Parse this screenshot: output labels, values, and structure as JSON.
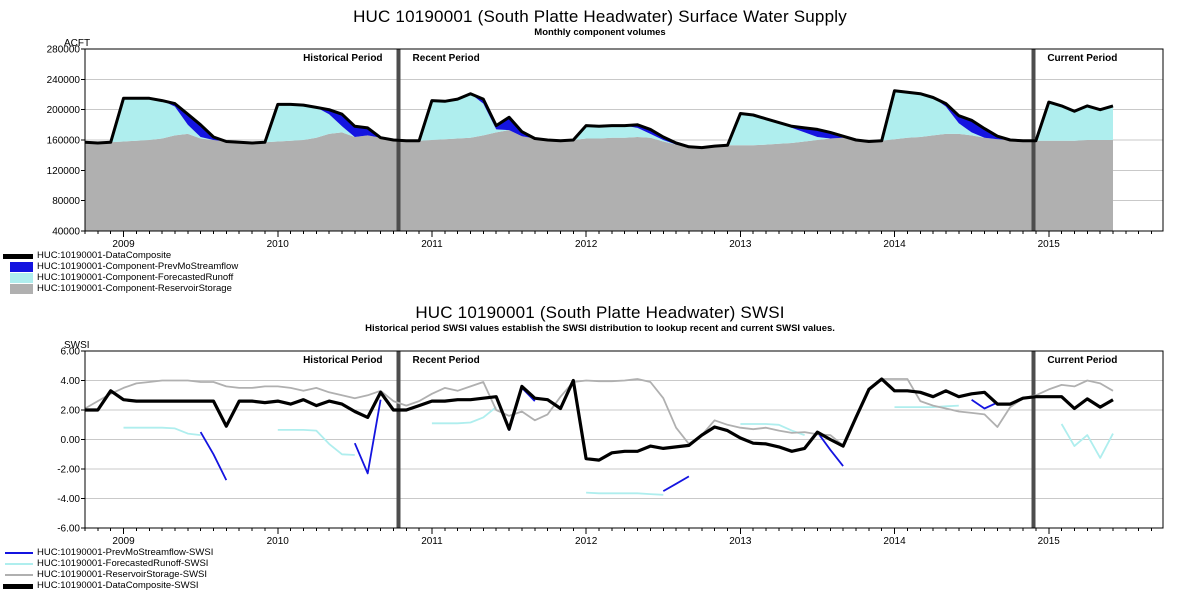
{
  "page": {
    "background": "#FFFFFF"
  },
  "colors": {
    "composite": "#000000",
    "prev_mo_streamflow": "#1414E0",
    "forecasted_runoff": "#AFEEEE",
    "reservoir_storage": "#B0B0B0",
    "gridline": "#C9C9C9",
    "divider": "#4D4D4D"
  },
  "top_chart": {
    "title": "HUC 10190001 (South Platte Headwater) Surface Water Supply",
    "subtitle": "Monthly component volumes",
    "y_axis_label": "ACFT",
    "period_labels": {
      "historical": "Historical Period",
      "recent": "Recent Period",
      "current": "Current Period"
    },
    "legend": [
      {
        "label": "HUC:10190001-DataComposite",
        "swatch": "thickline",
        "color": "#000000"
      },
      {
        "label": "HUC:10190001-Component-PrevMoStreamflow",
        "swatch": "fill",
        "color": "#1414E0"
      },
      {
        "label": "HUC:10190001-Component-ForecastedRunoff",
        "swatch": "fill",
        "color": "#AFEEEE"
      },
      {
        "label": "HUC:10190001-Component-ReservoirStorage",
        "swatch": "fill",
        "color": "#B0B0B0"
      }
    ],
    "chart_data": {
      "type": "area",
      "stacked": true,
      "x_start": "2008-10",
      "x_freq": "monthly",
      "x_tick_labels": [
        "2009",
        "2010",
        "2011",
        "2012",
        "2013",
        "2014",
        "2015"
      ],
      "ylim": [
        40000,
        280000
      ],
      "y_ticks": [
        280000,
        240000,
        200000,
        160000,
        120000,
        80000,
        40000
      ],
      "unit": "ACFT",
      "value_scale": 1000,
      "period_dividers": [
        24.4,
        73.8
      ],
      "series": [
        {
          "name": "ReservoirStorage",
          "color": "#B0B0B0",
          "values": [
            157,
            156,
            157,
            158,
            159,
            160,
            162,
            166,
            168,
            162,
            160,
            158,
            157,
            156,
            157,
            158,
            159,
            160,
            163,
            168,
            170,
            164,
            166,
            163,
            160,
            159,
            159,
            160,
            161,
            162,
            163,
            166,
            170,
            173,
            165,
            162,
            160,
            159,
            160,
            162,
            162,
            163,
            163,
            164,
            163,
            158,
            154,
            151,
            150,
            152,
            153,
            153,
            153,
            154,
            155,
            156,
            158,
            160,
            162,
            163,
            160,
            158,
            159,
            161,
            163,
            164,
            166,
            168,
            168,
            166,
            163,
            161,
            160,
            159,
            159,
            159,
            159,
            159,
            160,
            160,
            160
          ]
        },
        {
          "name": "ForecastedRunoff",
          "color": "#AFEEEE",
          "values": [
            0,
            0,
            0,
            57,
            56,
            55,
            50,
            38,
            12,
            2,
            0,
            0,
            0,
            0,
            0,
            49,
            48,
            46,
            40,
            26,
            8,
            0,
            0,
            0,
            0,
            0,
            0,
            52,
            50,
            52,
            58,
            42,
            4,
            0,
            0,
            0,
            0,
            0,
            0,
            17,
            16,
            16,
            16,
            12,
            5,
            2,
            0,
            0,
            0,
            0,
            0,
            42,
            40,
            34,
            28,
            20,
            12,
            4,
            0,
            0,
            0,
            0,
            0,
            64,
            60,
            57,
            50,
            36,
            14,
            4,
            0,
            0,
            0,
            0,
            0,
            51,
            46,
            39,
            45,
            40,
            45
          ]
        },
        {
          "name": "PrevMoStreamflow",
          "color": "#1414E0",
          "values": [
            0,
            0,
            0,
            0,
            0,
            0,
            0,
            4,
            14,
            16,
            4,
            0,
            0,
            0,
            0,
            0,
            0,
            0,
            0,
            6,
            16,
            14,
            10,
            0,
            0,
            0,
            0,
            0,
            0,
            0,
            0,
            6,
            5,
            17,
            6,
            0,
            0,
            0,
            0,
            0,
            0,
            0,
            0,
            4,
            6,
            4,
            2,
            0,
            0,
            0,
            0,
            0,
            0,
            0,
            0,
            2,
            6,
            10,
            8,
            2,
            0,
            0,
            0,
            0,
            0,
            0,
            0,
            4,
            10,
            16,
            12,
            4,
            0,
            0,
            0,
            0,
            0,
            0,
            0,
            0,
            0
          ]
        },
        {
          "name": "DataComposite",
          "color": "#000000",
          "derived_from": "sum of the three component series"
        }
      ]
    }
  },
  "bottom_chart": {
    "title": "HUC 10190001 (South Platte Headwater) SWSI",
    "subtitle": "Historical period SWSI values establish the SWSI distribution to lookup recent and current SWSI values.",
    "y_axis_label": "SWSI",
    "period_labels": {
      "historical": "Historical Period",
      "recent": "Recent Period",
      "current": "Current Period"
    },
    "legend": [
      {
        "label": "HUC:10190001-PrevMoStreamflow-SWSI",
        "swatch": "line",
        "color": "#1414E0"
      },
      {
        "label": "HUC:10190001-ForecastedRunoff-SWSI",
        "swatch": "line",
        "color": "#AFEEEE"
      },
      {
        "label": "HUC:10190001-ReservoirStorage-SWSI",
        "swatch": "line",
        "color": "#B0B0B0"
      },
      {
        "label": "HUC:10190001-DataComposite-SWSI",
        "swatch": "thickline",
        "color": "#000000"
      }
    ],
    "chart_data": {
      "type": "line",
      "x_start": "2008-10",
      "x_freq": "monthly",
      "x_tick_labels": [
        "2009",
        "2010",
        "2011",
        "2012",
        "2013",
        "2014",
        "2015"
      ],
      "ylim": [
        -6,
        6
      ],
      "y_ticks": [
        6,
        4,
        2,
        0,
        -2,
        -4,
        -6
      ],
      "period_dividers": [
        24.4,
        73.8
      ],
      "series": [
        {
          "name": "PrevMoStreamflow-SWSI",
          "color": "#1414E0",
          "width": 1.8,
          "values": [
            null,
            null,
            null,
            null,
            null,
            null,
            null,
            null,
            null,
            0.5,
            -1.0,
            -2.75,
            null,
            null,
            null,
            null,
            null,
            null,
            null,
            null,
            null,
            -0.25,
            -2.3,
            2.7,
            null,
            null,
            null,
            null,
            null,
            null,
            null,
            null,
            null,
            0.6,
            3.5,
            2.6,
            null,
            null,
            null,
            null,
            null,
            null,
            null,
            null,
            null,
            -3.5,
            -3.0,
            -2.5,
            null,
            null,
            null,
            null,
            null,
            null,
            null,
            null,
            null,
            0.5,
            -0.7,
            -1.8,
            null,
            null,
            null,
            null,
            null,
            null,
            null,
            null,
            null,
            2.7,
            2.1,
            2.5,
            null,
            null,
            null,
            null,
            null,
            null,
            null,
            null,
            null
          ]
        },
        {
          "name": "ForecastedRunoff-SWSI",
          "color": "#AFEEEE",
          "width": 1.8,
          "values": [
            null,
            null,
            null,
            0.8,
            0.8,
            0.8,
            0.8,
            0.75,
            0.4,
            0.3,
            null,
            null,
            null,
            null,
            null,
            0.65,
            0.65,
            0.65,
            0.6,
            -0.3,
            -1.0,
            -1.05,
            null,
            null,
            null,
            null,
            null,
            1.1,
            1.1,
            1.1,
            1.15,
            1.5,
            2.2,
            null,
            null,
            null,
            null,
            null,
            null,
            -3.6,
            -3.65,
            -3.65,
            -3.65,
            -3.65,
            -3.7,
            -3.75,
            null,
            null,
            null,
            null,
            null,
            1.05,
            1.05,
            1.05,
            1.0,
            0.6,
            0.3,
            null,
            null,
            null,
            null,
            null,
            null,
            2.2,
            2.2,
            2.2,
            2.2,
            2.25,
            2.3,
            null,
            null,
            null,
            null,
            null,
            null,
            null,
            1.05,
            -0.45,
            0.3,
            -1.25,
            0.4
          ]
        },
        {
          "name": "ReservoirStorage-SWSI",
          "color": "#B0B0B0",
          "width": 1.8,
          "values": [
            2.1,
            2.6,
            3.1,
            3.5,
            3.8,
            3.9,
            4.0,
            4.0,
            4.0,
            3.9,
            3.9,
            3.6,
            3.5,
            3.5,
            3.6,
            3.6,
            3.5,
            3.3,
            3.5,
            3.2,
            3.0,
            2.8,
            3.0,
            3.3,
            2.6,
            2.3,
            2.6,
            3.1,
            3.5,
            3.3,
            3.6,
            3.9,
            2.0,
            1.6,
            1.9,
            1.3,
            1.7,
            2.9,
            3.9,
            4.0,
            3.95,
            3.95,
            4.0,
            4.1,
            3.9,
            2.8,
            0.8,
            -0.3,
            0.3,
            1.3,
            1.0,
            0.8,
            0.7,
            0.8,
            0.6,
            0.45,
            0.5,
            0.35,
            0.3,
            -0.4,
            1.5,
            3.4,
            4.1,
            4.1,
            4.1,
            2.6,
            2.3,
            2.1,
            1.9,
            1.8,
            1.7,
            0.85,
            2.2,
            2.8,
            3.0,
            3.4,
            3.7,
            3.6,
            4.0,
            3.8,
            3.3
          ]
        },
        {
          "name": "DataComposite-SWSI",
          "color": "#000000",
          "width": 3.2,
          "values": [
            2.0,
            2.0,
            3.3,
            2.7,
            2.6,
            2.6,
            2.6,
            2.6,
            2.6,
            2.6,
            2.6,
            0.9,
            2.6,
            2.6,
            2.5,
            2.6,
            2.4,
            2.7,
            2.3,
            2.6,
            2.4,
            1.9,
            1.5,
            3.2,
            2.0,
            2.0,
            2.3,
            2.6,
            2.6,
            2.7,
            2.7,
            2.8,
            2.9,
            0.7,
            3.6,
            2.8,
            2.7,
            2.1,
            4.0,
            -1.3,
            -1.4,
            -0.9,
            -0.8,
            -0.8,
            -0.45,
            -0.6,
            -0.5,
            -0.4,
            0.3,
            0.85,
            0.6,
            0.1,
            -0.25,
            -0.3,
            -0.5,
            -0.8,
            -0.6,
            0.5,
            0.0,
            -0.45,
            1.5,
            3.4,
            4.1,
            3.3,
            3.3,
            3.2,
            2.9,
            3.3,
            2.9,
            3.1,
            3.2,
            2.4,
            2.4,
            2.8,
            2.9,
            2.9,
            2.9,
            2.1,
            2.75,
            2.2,
            2.7
          ]
        }
      ]
    }
  }
}
